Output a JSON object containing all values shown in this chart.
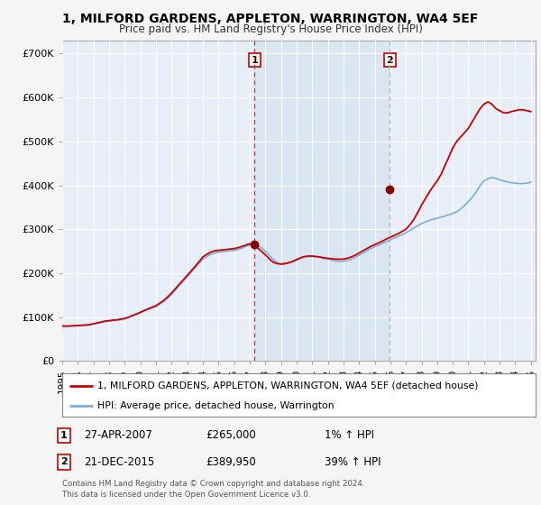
{
  "title": "1, MILFORD GARDENS, APPLETON, WARRINGTON, WA4 5EF",
  "subtitle": "Price paid vs. HM Land Registry's House Price Index (HPI)",
  "xlim_start": 1995.0,
  "xlim_end": 2025.3,
  "ylim_min": 0,
  "ylim_max": 730000,
  "yticks": [
    0,
    100000,
    200000,
    300000,
    400000,
    500000,
    600000,
    700000
  ],
  "ytick_labels": [
    "£0",
    "£100K",
    "£200K",
    "£300K",
    "£400K",
    "£500K",
    "£600K",
    "£700K"
  ],
  "background_color": "#f5f5f5",
  "plot_bg_color": "#e8eef8",
  "grid_color": "#ffffff",
  "sale1_date": 2007.32,
  "sale1_price": 265000,
  "sale1_label": "1",
  "sale2_date": 2015.97,
  "sale2_price": 389950,
  "sale2_label": "2",
  "legend_label_red": "1, MILFORD GARDENS, APPLETON, WARRINGTON, WA4 5EF (detached house)",
  "legend_label_blue": "HPI: Average price, detached house, Warrington",
  "annotation1_num": "1",
  "annotation1_date": "27-APR-2007",
  "annotation1_price": "£265,000",
  "annotation1_hpi": "1% ↑ HPI",
  "annotation2_num": "2",
  "annotation2_date": "21-DEC-2015",
  "annotation2_price": "£389,950",
  "annotation2_hpi": "39% ↑ HPI",
  "footnote": "Contains HM Land Registry data © Crown copyright and database right 2024.\nThis data is licensed under the Open Government Licence v3.0.",
  "red_color": "#cc0000",
  "blue_color": "#7ab0d8",
  "marker_color": "#880000",
  "shade_color": "#d0e0f0",
  "hpi_years": [
    1995.0,
    1995.25,
    1995.5,
    1995.75,
    1996.0,
    1996.25,
    1996.5,
    1996.75,
    1997.0,
    1997.25,
    1997.5,
    1997.75,
    1998.0,
    1998.25,
    1998.5,
    1998.75,
    1999.0,
    1999.25,
    1999.5,
    1999.75,
    2000.0,
    2000.25,
    2000.5,
    2000.75,
    2001.0,
    2001.25,
    2001.5,
    2001.75,
    2002.0,
    2002.25,
    2002.5,
    2002.75,
    2003.0,
    2003.25,
    2003.5,
    2003.75,
    2004.0,
    2004.25,
    2004.5,
    2004.75,
    2005.0,
    2005.25,
    2005.5,
    2005.75,
    2006.0,
    2006.25,
    2006.5,
    2006.75,
    2007.0,
    2007.25,
    2007.5,
    2007.75,
    2008.0,
    2008.25,
    2008.5,
    2008.75,
    2009.0,
    2009.25,
    2009.5,
    2009.75,
    2010.0,
    2010.25,
    2010.5,
    2010.75,
    2011.0,
    2011.25,
    2011.5,
    2011.75,
    2012.0,
    2012.25,
    2012.5,
    2012.75,
    2013.0,
    2013.25,
    2013.5,
    2013.75,
    2014.0,
    2014.25,
    2014.5,
    2014.75,
    2015.0,
    2015.25,
    2015.5,
    2015.75,
    2016.0,
    2016.25,
    2016.5,
    2016.75,
    2017.0,
    2017.25,
    2017.5,
    2017.75,
    2018.0,
    2018.25,
    2018.5,
    2018.75,
    2019.0,
    2019.25,
    2019.5,
    2019.75,
    2020.0,
    2020.25,
    2020.5,
    2020.75,
    2021.0,
    2021.25,
    2021.5,
    2021.75,
    2022.0,
    2022.25,
    2022.5,
    2022.75,
    2023.0,
    2023.25,
    2023.5,
    2023.75,
    2024.0,
    2024.25,
    2024.5,
    2024.75,
    2025.0
  ],
  "hpi_values": [
    80000,
    79000,
    79500,
    80000,
    80500,
    81000,
    81500,
    82500,
    84000,
    86000,
    88000,
    90000,
    91000,
    92000,
    93000,
    94000,
    96000,
    99000,
    103000,
    106000,
    110000,
    114000,
    118000,
    121000,
    124000,
    130000,
    136000,
    143000,
    152000,
    162000,
    172000,
    182000,
    192000,
    202000,
    212000,
    222000,
    232000,
    238000,
    243000,
    246000,
    248000,
    249000,
    250000,
    251000,
    252000,
    254000,
    257000,
    261000,
    264000,
    267000,
    264000,
    258000,
    250000,
    241000,
    232000,
    224000,
    220000,
    221000,
    223000,
    226000,
    230000,
    234000,
    237000,
    238000,
    238000,
    237000,
    236000,
    234000,
    232000,
    230000,
    228000,
    227000,
    227000,
    229000,
    232000,
    236000,
    241000,
    246000,
    251000,
    256000,
    260000,
    264000,
    268000,
    272000,
    276000,
    280000,
    284000,
    288000,
    292000,
    297000,
    303000,
    308000,
    313000,
    317000,
    320000,
    323000,
    325000,
    328000,
    330000,
    333000,
    336000,
    340000,
    346000,
    354000,
    363000,
    373000,
    385000,
    400000,
    410000,
    415000,
    418000,
    416000,
    413000,
    410000,
    408000,
    406000,
    405000,
    404000,
    404000,
    405000,
    407000
  ],
  "red_years": [
    1995.0,
    1995.25,
    1995.5,
    1995.75,
    1996.0,
    1996.25,
    1996.5,
    1996.75,
    1997.0,
    1997.25,
    1997.5,
    1997.75,
    1998.0,
    1998.25,
    1998.5,
    1998.75,
    1999.0,
    1999.25,
    1999.5,
    1999.75,
    2000.0,
    2000.25,
    2000.5,
    2000.75,
    2001.0,
    2001.25,
    2001.5,
    2001.75,
    2002.0,
    2002.25,
    2002.5,
    2002.75,
    2003.0,
    2003.25,
    2003.5,
    2003.75,
    2004.0,
    2004.25,
    2004.5,
    2004.75,
    2005.0,
    2005.25,
    2005.5,
    2005.75,
    2006.0,
    2006.25,
    2006.5,
    2006.75,
    2007.0,
    2007.25,
    2007.5,
    2007.75,
    2008.0,
    2008.25,
    2008.5,
    2008.75,
    2009.0,
    2009.25,
    2009.5,
    2009.75,
    2010.0,
    2010.25,
    2010.5,
    2010.75,
    2011.0,
    2011.25,
    2011.5,
    2011.75,
    2012.0,
    2012.25,
    2012.5,
    2012.75,
    2013.0,
    2013.25,
    2013.5,
    2013.75,
    2014.0,
    2014.25,
    2014.5,
    2014.75,
    2015.0,
    2015.25,
    2015.5,
    2015.75,
    2016.0,
    2016.25,
    2016.5,
    2016.75,
    2017.0,
    2017.25,
    2017.5,
    2017.75,
    2018.0,
    2018.25,
    2018.5,
    2018.75,
    2019.0,
    2019.25,
    2019.5,
    2019.75,
    2020.0,
    2020.25,
    2020.5,
    2020.75,
    2021.0,
    2021.25,
    2021.5,
    2021.75,
    2022.0,
    2022.25,
    2022.5,
    2022.75,
    2023.0,
    2023.25,
    2023.5,
    2023.75,
    2024.0,
    2024.25,
    2024.5,
    2024.75,
    2025.0
  ],
  "red_values": [
    80000,
    79500,
    80000,
    80500,
    81000,
    81500,
    82000,
    83000,
    85000,
    87000,
    89000,
    91000,
    92000,
    93000,
    94000,
    95500,
    97000,
    100000,
    104000,
    107000,
    111000,
    115000,
    119000,
    122500,
    126000,
    132000,
    138000,
    146000,
    155000,
    165000,
    175000,
    185000,
    195000,
    205000,
    215000,
    226000,
    237000,
    243000,
    248000,
    251000,
    252000,
    253000,
    254000,
    255000,
    256000,
    258000,
    261000,
    264000,
    267000,
    265000,
    258000,
    250000,
    242000,
    233000,
    225000,
    222000,
    221000,
    222000,
    224000,
    227000,
    231000,
    235000,
    238000,
    239000,
    239000,
    238000,
    237000,
    235000,
    234000,
    233000,
    232000,
    232000,
    232000,
    234000,
    237000,
    241000,
    246000,
    251000,
    256000,
    261000,
    265000,
    269000,
    273000,
    278000,
    282000,
    286000,
    290000,
    295000,
    300000,
    310000,
    322000,
    338000,
    355000,
    370000,
    385000,
    398000,
    410000,
    425000,
    445000,
    465000,
    485000,
    500000,
    510000,
    520000,
    530000,
    545000,
    560000,
    575000,
    585000,
    590000,
    585000,
    575000,
    570000,
    565000,
    565000,
    568000,
    570000,
    572000,
    572000,
    570000,
    568000
  ]
}
